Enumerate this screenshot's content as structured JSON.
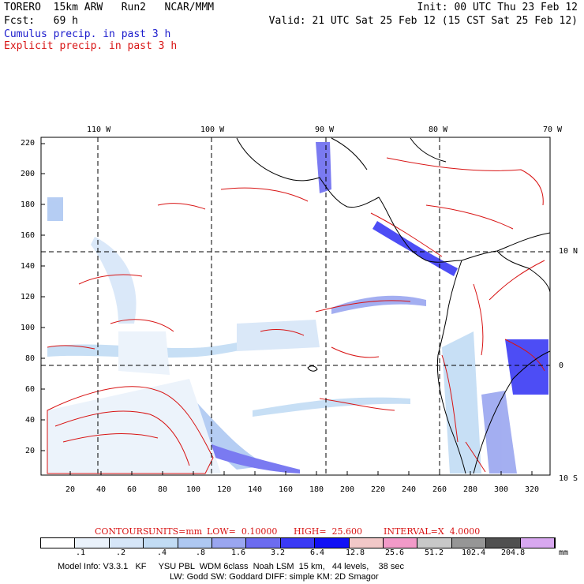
{
  "header": {
    "line1_left": "TORERO  15km ARW   Run2   NCAR/MMM",
    "line1_right": "Init: 00 UTC Thu 23 Feb 12",
    "line2_left": "Fcst:   69 h",
    "line2_right": "Valid: 21 UTC Sat 25 Feb 12 (15 CST Sat 25 Feb 12)",
    "legend_cumulus": "Cumulus precip. in past 3 h",
    "legend_explicit": "Explicit precip. in past 3 h"
  },
  "map": {
    "lon_labels": [
      "110 W",
      "100 W",
      "90 W",
      "80 W",
      "70 W"
    ],
    "lat_labels": [
      "10 N",
      "0",
      "10 S"
    ],
    "y_ticks": [
      "220",
      "200",
      "180",
      "160",
      "140",
      "120",
      "100",
      "80",
      "60",
      "40",
      "20"
    ],
    "x_ticks": [
      "20",
      "40",
      "60",
      "80",
      "100",
      "120",
      "140",
      "160",
      "180",
      "200",
      "220",
      "240",
      "260",
      "280",
      "300",
      "320"
    ]
  },
  "contour_info": {
    "contours": "CONTOURS:",
    "units": "UNITS=mm",
    "low": "LOW=  0.10000",
    "high": "HIGH=  25.600",
    "interval": "INTERVAL=X  4.0000"
  },
  "colorbar": {
    "colors": [
      "#ffffff",
      "#eaf2fb",
      "#d6e6f8",
      "#c2dcf4",
      "#aec8f2",
      "#9aa6f0",
      "#6c6cf0",
      "#3a3af5",
      "#1010f5",
      "#f2c8c8",
      "#f29ac8",
      "#c8c8c8",
      "#969696",
      "#505050",
      "#d8a8f0"
    ],
    "labels": [
      ".1",
      ".2",
      ".4",
      ".8",
      "1.6",
      "3.2",
      "6.4",
      "12.8",
      "25.6",
      "51.2",
      "102.4",
      "204.8"
    ],
    "units": "mm"
  },
  "model_info": {
    "line1": "Model Info: V3.3.1   KF     YSU PBL  WDM 6class  Noah LSM  15 km,   44 levels,    38 sec",
    "line2": "LW: Godd SW: Goddard DIFF: simple KM: 2D Smagor"
  }
}
